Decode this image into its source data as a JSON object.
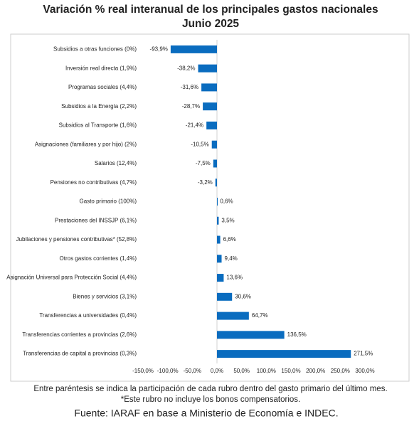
{
  "chart_data": {
    "type": "hbar",
    "title": "Variación % real interanual de los principales gastos nacionales",
    "subtitle": "Junio 2025",
    "categories": [
      "Subsidios a otras funciones (0%)",
      "Inversión real directa (1,9%)",
      "Programas sociales (4,4%)",
      "Subsidios a la Energía (2,2%)",
      "Subsidios al Transporte (1,6%)",
      "Asignaciones (familiares y por hijo) (2%)",
      "Salarios (12,4%)",
      "Pensiones no contributivas (4,7%)",
      "Gasto primario (100%)",
      "Prestaciones del INSSJP (6,1%)",
      "Jubilaciones y pensiones contributivas* (52,8%)",
      "Otros gastos corrientes (1,4%)",
      "Asignación Universal para Protección Social (4,4%)",
      "Bienes y servicios (3,1%)",
      "Transferencias a universidades (0,4%)",
      "Transferencias corrientes a provincias (2,6%)",
      "Transferencias de capital a provincias (0,3%)"
    ],
    "values": [
      -93.9,
      -38.2,
      -31.6,
      -28.7,
      -21.4,
      -10.5,
      -7.5,
      -3.2,
      0.6,
      3.5,
      6.6,
      9.4,
      13.6,
      30.6,
      64.7,
      136.5,
      271.5
    ],
    "value_labels": [
      "-93,9%",
      "-38,2%",
      "-31,6%",
      "-28,7%",
      "-21,4%",
      "-10,5%",
      "-7,5%",
      "-3,2%",
      "0,6%",
      "3,5%",
      "6,6%",
      "9,4%",
      "13,6%",
      "30,6%",
      "64,7%",
      "136,5%",
      "271,5%"
    ],
    "color": "#0a6cbf",
    "xlim": [
      -150,
      300
    ],
    "xticks": [
      {
        "value": -150,
        "label": "-150,0%"
      },
      {
        "value": -100,
        "label": "-100,0%"
      },
      {
        "value": -50,
        "label": "-50,0%"
      },
      {
        "value": 0,
        "label": "0,0%"
      },
      {
        "value": 50,
        "label": "50,0%"
      },
      {
        "value": 100,
        "label": "100,0%"
      },
      {
        "value": 150,
        "label": "150,0%"
      },
      {
        "value": 200,
        "label": "200,0%"
      },
      {
        "value": 250,
        "label": "250,0%"
      },
      {
        "value": 300,
        "label": "300,0%"
      }
    ],
    "grid": false,
    "notes": [
      "Entre paréntesis se indica la participación de cada rubro dentro del gasto primario del último mes.",
      "*Este rubro no incluye los bonos compensatorios."
    ],
    "source": "Fuente: IARAF en base a Ministerio de Economía e INDEC."
  }
}
